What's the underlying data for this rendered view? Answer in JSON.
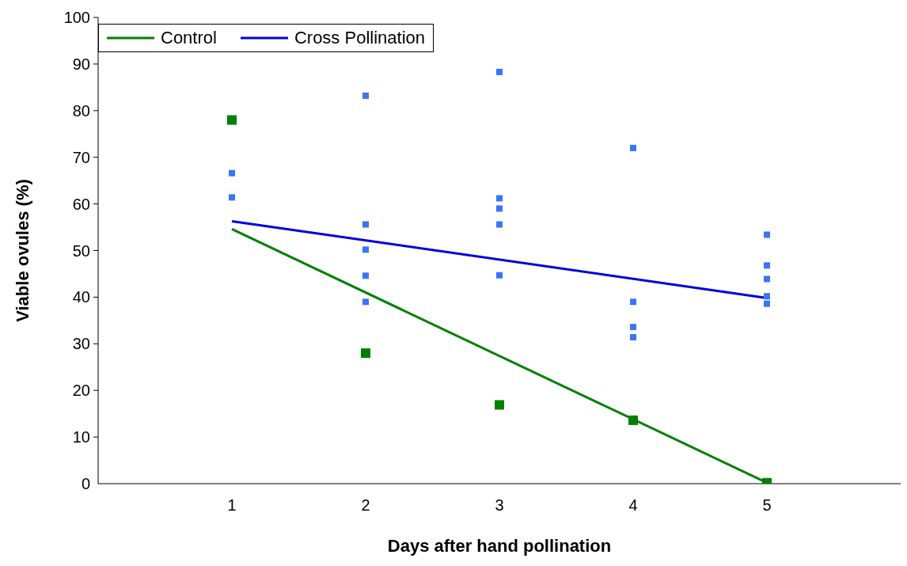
{
  "chart_data": {
    "type": "scatter",
    "xlabel": "Days after hand pollination",
    "ylabel": "Viable ovules (%)",
    "xlim": [
      0,
      6
    ],
    "xticks": [
      1,
      2,
      3,
      4,
      5
    ],
    "ylim": [
      0,
      100
    ],
    "yticks": [
      0,
      10,
      20,
      30,
      40,
      50,
      60,
      70,
      80,
      90,
      100
    ],
    "grid": false,
    "legend": "top left",
    "line_style": "solid",
    "series": [
      {
        "marker": "square",
        "color": "#3a75f5",
        "x": [
          1,
          1,
          2,
          2,
          2,
          2,
          2,
          3,
          3,
          3,
          3,
          3,
          4,
          4,
          4,
          4,
          5,
          5,
          5,
          5,
          5
        ],
        "values": [
          66.6,
          61.4,
          83.2,
          55.6,
          50.2,
          44.6,
          39,
          88.3,
          61.2,
          59,
          55.6,
          44.7,
          72,
          39,
          33.6,
          31.4,
          53.4,
          46.8,
          43.9,
          40.2,
          38.6
        ]
      },
      {
        "marker": "square",
        "color": "#008000",
        "x": [
          1,
          2,
          3,
          4,
          5
        ],
        "values": [
          78,
          28,
          16.9,
          13.6,
          0.2
        ]
      },
      {
        "type": "line",
        "marker": "none",
        "name": "Control",
        "color": "#008000",
        "x": [
          1,
          5
        ],
        "values": [
          54.6,
          0.2
        ]
      },
      {
        "type": "line",
        "marker": "none",
        "name": "Cross Pollination",
        "color": "#0000dd",
        "x": [
          1,
          5
        ],
        "values": [
          56.3,
          39.8
        ]
      }
    ]
  }
}
